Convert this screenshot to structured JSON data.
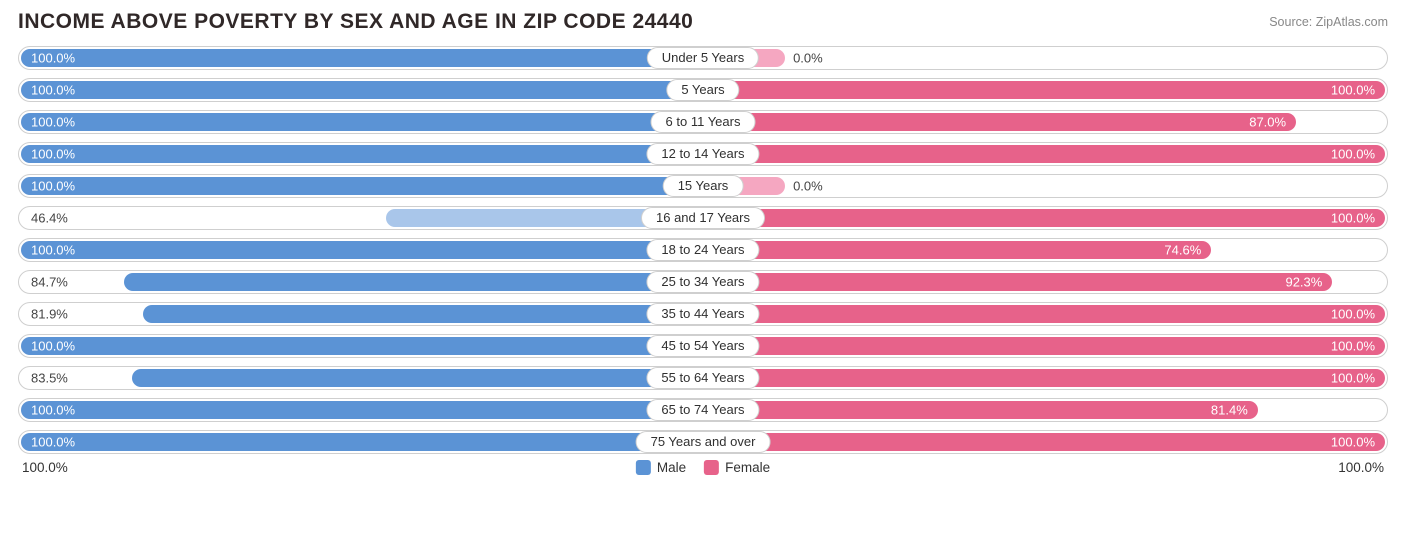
{
  "title": "INCOME ABOVE POVERTY BY SEX AND AGE IN ZIP CODE 24440",
  "source": "Source: ZipAtlas.com",
  "colors": {
    "male": "#5b93d5",
    "male_alt": "#a9c6ea",
    "female": "#e7628a",
    "female_alt": "#f5a7c1",
    "row_border": "#cfcfcf",
    "text_on_bar": "#ffffff",
    "text_outside": "#444444",
    "bg": "#ffffff"
  },
  "axis": {
    "left": "100.0%",
    "right": "100.0%"
  },
  "legend": {
    "male": "Male",
    "female": "Female"
  },
  "rows": [
    {
      "category": "Under 5 Years",
      "male": {
        "pct": 100.0,
        "label": "100.0%",
        "alt": false
      },
      "female": {
        "pct": 0.0,
        "label": "0.0%",
        "alt": true,
        "stub": 12
      }
    },
    {
      "category": "5 Years",
      "male": {
        "pct": 100.0,
        "label": "100.0%",
        "alt": false
      },
      "female": {
        "pct": 100.0,
        "label": "100.0%",
        "alt": false
      }
    },
    {
      "category": "6 to 11 Years",
      "male": {
        "pct": 100.0,
        "label": "100.0%",
        "alt": false
      },
      "female": {
        "pct": 87.0,
        "label": "87.0%",
        "alt": false
      }
    },
    {
      "category": "12 to 14 Years",
      "male": {
        "pct": 100.0,
        "label": "100.0%",
        "alt": false
      },
      "female": {
        "pct": 100.0,
        "label": "100.0%",
        "alt": false
      }
    },
    {
      "category": "15 Years",
      "male": {
        "pct": 100.0,
        "label": "100.0%",
        "alt": false
      },
      "female": {
        "pct": 0.0,
        "label": "0.0%",
        "alt": true,
        "stub": 12
      }
    },
    {
      "category": "16 and 17 Years",
      "male": {
        "pct": 46.4,
        "label": "46.4%",
        "alt": true
      },
      "female": {
        "pct": 100.0,
        "label": "100.0%",
        "alt": false
      }
    },
    {
      "category": "18 to 24 Years",
      "male": {
        "pct": 100.0,
        "label": "100.0%",
        "alt": false
      },
      "female": {
        "pct": 74.6,
        "label": "74.6%",
        "alt": false
      }
    },
    {
      "category": "25 to 34 Years",
      "male": {
        "pct": 84.7,
        "label": "84.7%",
        "alt": false
      },
      "female": {
        "pct": 92.3,
        "label": "92.3%",
        "alt": false
      }
    },
    {
      "category": "35 to 44 Years",
      "male": {
        "pct": 81.9,
        "label": "81.9%",
        "alt": false
      },
      "female": {
        "pct": 100.0,
        "label": "100.0%",
        "alt": false
      }
    },
    {
      "category": "45 to 54 Years",
      "male": {
        "pct": 100.0,
        "label": "100.0%",
        "alt": false
      },
      "female": {
        "pct": 100.0,
        "label": "100.0%",
        "alt": false
      }
    },
    {
      "category": "55 to 64 Years",
      "male": {
        "pct": 83.5,
        "label": "83.5%",
        "alt": false
      },
      "female": {
        "pct": 100.0,
        "label": "100.0%",
        "alt": false
      }
    },
    {
      "category": "65 to 74 Years",
      "male": {
        "pct": 100.0,
        "label": "100.0%",
        "alt": false
      },
      "female": {
        "pct": 81.4,
        "label": "81.4%",
        "alt": false
      }
    },
    {
      "category": "75 Years and over",
      "male": {
        "pct": 100.0,
        "label": "100.0%",
        "alt": false
      },
      "female": {
        "pct": 100.0,
        "label": "100.0%",
        "alt": false
      }
    }
  ]
}
